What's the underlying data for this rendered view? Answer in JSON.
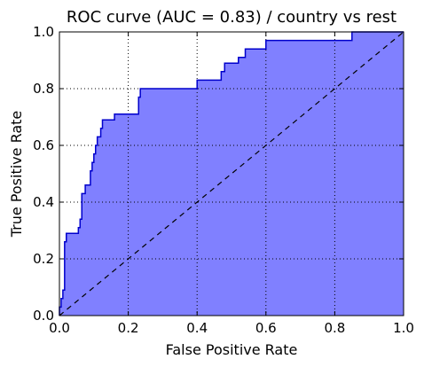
{
  "chart_data": {
    "type": "area",
    "title": "ROC curve (AUC = 0.83) / country vs rest",
    "xlabel": "False Positive Rate",
    "ylabel": "True Positive Rate",
    "xlim": [
      0.0,
      1.0
    ],
    "ylim": [
      0.0,
      1.0
    ],
    "grid": true,
    "x_ticks": [
      "0.0",
      "0.2",
      "0.4",
      "0.6",
      "0.8",
      "1.0"
    ],
    "y_ticks": [
      "0.0",
      "0.2",
      "0.4",
      "0.6",
      "0.8",
      "1.0"
    ],
    "fill_color": "#8080ff",
    "line_color": "#0000cc",
    "series": [
      {
        "points": [
          [
            0.0,
            0.0
          ],
          [
            0.0,
            0.03
          ],
          [
            0.005,
            0.03
          ],
          [
            0.005,
            0.06
          ],
          [
            0.01,
            0.06
          ],
          [
            0.01,
            0.09
          ],
          [
            0.015,
            0.09
          ],
          [
            0.015,
            0.26
          ],
          [
            0.02,
            0.26
          ],
          [
            0.02,
            0.29
          ],
          [
            0.055,
            0.29
          ],
          [
            0.055,
            0.31
          ],
          [
            0.06,
            0.31
          ],
          [
            0.06,
            0.34
          ],
          [
            0.065,
            0.34
          ],
          [
            0.065,
            0.43
          ],
          [
            0.075,
            0.43
          ],
          [
            0.075,
            0.46
          ],
          [
            0.09,
            0.46
          ],
          [
            0.09,
            0.51
          ],
          [
            0.095,
            0.51
          ],
          [
            0.095,
            0.54
          ],
          [
            0.1,
            0.54
          ],
          [
            0.1,
            0.57
          ],
          [
            0.105,
            0.57
          ],
          [
            0.105,
            0.6
          ],
          [
            0.11,
            0.6
          ],
          [
            0.11,
            0.63
          ],
          [
            0.12,
            0.63
          ],
          [
            0.12,
            0.66
          ],
          [
            0.125,
            0.66
          ],
          [
            0.125,
            0.69
          ],
          [
            0.16,
            0.69
          ],
          [
            0.16,
            0.71
          ],
          [
            0.23,
            0.71
          ],
          [
            0.23,
            0.77
          ],
          [
            0.235,
            0.77
          ],
          [
            0.235,
            0.8
          ],
          [
            0.4,
            0.8
          ],
          [
            0.4,
            0.83
          ],
          [
            0.47,
            0.83
          ],
          [
            0.47,
            0.86
          ],
          [
            0.48,
            0.86
          ],
          [
            0.48,
            0.89
          ],
          [
            0.52,
            0.89
          ],
          [
            0.52,
            0.91
          ],
          [
            0.54,
            0.91
          ],
          [
            0.54,
            0.94
          ],
          [
            0.6,
            0.94
          ],
          [
            0.6,
            0.97
          ],
          [
            0.85,
            0.97
          ],
          [
            0.85,
            1.0
          ],
          [
            1.0,
            1.0
          ]
        ]
      }
    ],
    "reference_line": [
      [
        0.0,
        0.0
      ],
      [
        1.0,
        1.0
      ]
    ]
  }
}
